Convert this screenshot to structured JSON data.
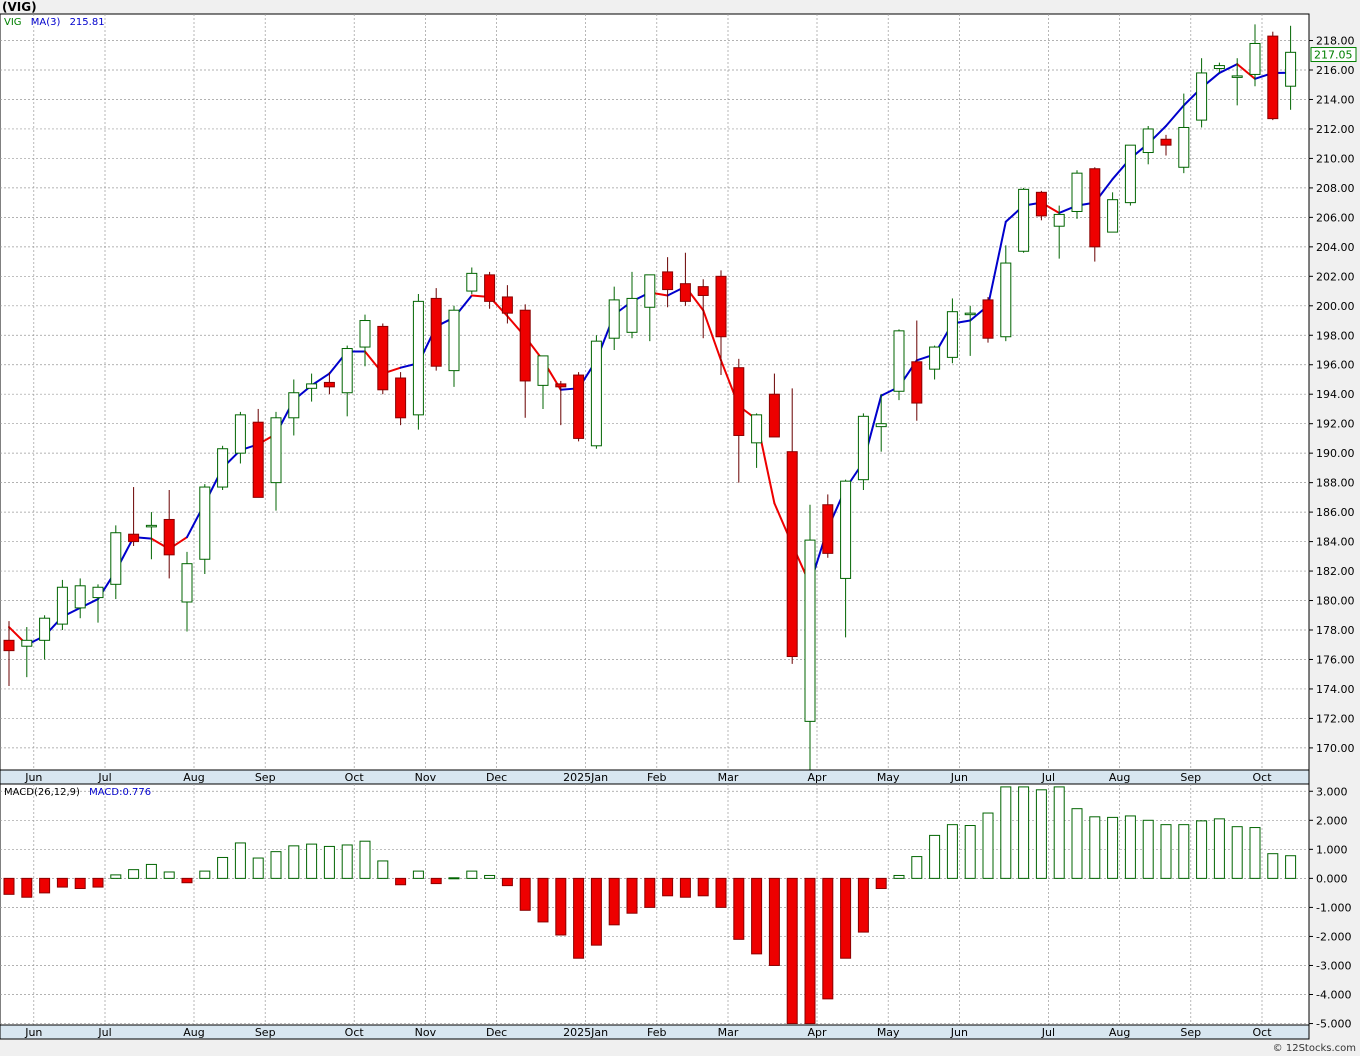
{
  "chart_data": [
    {
      "type": "candlestick",
      "title": "(VIG)",
      "legend": [
        {
          "label": "VIG",
          "color": "#008000"
        },
        {
          "label": "MA(3)",
          "color": "#0000cc"
        },
        {
          "label": "215.81",
          "color": "#0000cc"
        }
      ],
      "last_price_label": "217.05",
      "ylim": [
        168.5,
        219.8
      ],
      "yticks": [
        "170.00",
        "172.00",
        "174.00",
        "176.00",
        "178.00",
        "180.00",
        "182.00",
        "184.00",
        "186.00",
        "188.00",
        "190.00",
        "192.00",
        "194.00",
        "196.00",
        "198.00",
        "200.00",
        "202.00",
        "204.00",
        "206.00",
        "208.00",
        "210.00",
        "212.00",
        "214.00",
        "216.00",
        "218.00"
      ],
      "ytick_values": [
        170,
        172,
        174,
        176,
        178,
        180,
        182,
        184,
        186,
        188,
        190,
        192,
        194,
        196,
        198,
        200,
        202,
        204,
        206,
        208,
        210,
        212,
        214,
        216,
        218
      ],
      "x_month_labels": [
        {
          "label": "Jun",
          "at_bar": 1
        },
        {
          "label": "Jul",
          "at_bar": 5
        },
        {
          "label": "Aug",
          "at_bar": 10
        },
        {
          "label": "Sep",
          "at_bar": 14
        },
        {
          "label": "Oct",
          "at_bar": 19
        },
        {
          "label": "Nov",
          "at_bar": 23
        },
        {
          "label": "Dec",
          "at_bar": 27
        },
        {
          "label": "2025Jan",
          "at_bar": 32
        },
        {
          "label": "Feb",
          "at_bar": 36
        },
        {
          "label": "Mar",
          "at_bar": 40
        },
        {
          "label": "Apr",
          "at_bar": 45
        },
        {
          "label": "May",
          "at_bar": 49
        },
        {
          "label": "Jun",
          "at_bar": 53
        },
        {
          "label": "Jul",
          "at_bar": 58
        },
        {
          "label": "Aug",
          "at_bar": 62
        },
        {
          "label": "Sep",
          "at_bar": 66
        },
        {
          "label": "Oct",
          "at_bar": 70
        }
      ],
      "ohlc": [
        [
          177.3,
          178.6,
          174.2,
          176.6
        ],
        [
          176.9,
          178.2,
          174.8,
          177.3
        ],
        [
          177.3,
          179.0,
          176.0,
          178.8
        ],
        [
          178.4,
          181.4,
          178.0,
          180.9
        ],
        [
          179.5,
          181.5,
          178.8,
          181.0
        ],
        [
          180.2,
          181.1,
          178.5,
          180.9
        ],
        [
          181.1,
          185.1,
          180.1,
          184.6
        ],
        [
          184.5,
          187.7,
          183.7,
          184.0
        ],
        [
          185.0,
          186.0,
          182.8,
          185.1
        ],
        [
          185.5,
          187.5,
          181.5,
          183.1
        ],
        [
          179.9,
          183.3,
          177.9,
          182.5
        ],
        [
          182.8,
          187.9,
          181.8,
          187.7
        ],
        [
          187.7,
          190.5,
          187.5,
          190.3
        ],
        [
          190.0,
          192.8,
          189.3,
          192.6
        ],
        [
          192.1,
          193.0,
          187.0,
          187.0
        ],
        [
          188.0,
          192.8,
          186.1,
          192.4
        ],
        [
          192.4,
          195.0,
          191.2,
          194.1
        ],
        [
          194.4,
          195.4,
          193.5,
          194.7
        ],
        [
          194.8,
          195.5,
          194.0,
          194.5
        ],
        [
          194.1,
          197.3,
          192.5,
          197.1
        ],
        [
          197.2,
          199.4,
          195.9,
          199.0
        ],
        [
          198.6,
          198.8,
          194.0,
          194.3
        ],
        [
          195.1,
          195.5,
          191.9,
          192.4
        ],
        [
          192.6,
          200.8,
          191.6,
          200.3
        ],
        [
          200.5,
          201.2,
          195.6,
          195.9
        ],
        [
          195.6,
          200.0,
          194.5,
          199.7
        ],
        [
          201.0,
          202.6,
          200.8,
          202.2
        ],
        [
          202.1,
          202.3,
          199.8,
          200.3
        ],
        [
          200.6,
          201.4,
          198.8,
          199.5
        ],
        [
          199.7,
          200.1,
          192.4,
          194.9
        ],
        [
          194.6,
          196.1,
          193.0,
          196.6
        ],
        [
          194.7,
          194.9,
          191.9,
          194.5
        ],
        [
          195.3,
          195.5,
          190.8,
          191.0
        ],
        [
          190.5,
          198.0,
          190.3,
          197.6
        ],
        [
          197.8,
          201.3,
          197.0,
          200.4
        ],
        [
          198.2,
          202.3,
          197.8,
          200.5
        ],
        [
          199.9,
          202.0,
          197.6,
          202.1
        ],
        [
          202.3,
          203.3,
          199.9,
          201.1
        ],
        [
          201.5,
          203.6,
          200.0,
          200.3
        ],
        [
          201.3,
          201.8,
          197.8,
          200.7
        ],
        [
          202.0,
          202.4,
          195.3,
          197.9
        ],
        [
          195.8,
          196.4,
          188.0,
          191.2
        ],
        [
          190.7,
          192.7,
          189.0,
          192.6
        ],
        [
          194.0,
          195.4,
          191.3,
          191.1
        ],
        [
          190.1,
          194.4,
          175.7,
          176.2
        ],
        [
          171.8,
          186.5,
          168.5,
          184.1
        ],
        [
          186.5,
          187.2,
          182.9,
          183.2
        ],
        [
          181.5,
          188.2,
          177.5,
          188.1
        ],
        [
          188.2,
          192.7,
          187.5,
          192.5
        ],
        [
          191.8,
          194.0,
          190.1,
          192.0
        ],
        [
          194.2,
          198.4,
          193.6,
          198.3
        ],
        [
          196.2,
          199.0,
          192.2,
          193.4
        ],
        [
          195.7,
          197.3,
          195.0,
          197.2
        ],
        [
          196.5,
          200.5,
          196.1,
          199.6
        ],
        [
          199.5,
          200.0,
          196.6,
          199.5
        ],
        [
          200.4,
          200.6,
          197.5,
          197.8
        ],
        [
          197.9,
          204.1,
          197.6,
          202.9
        ],
        [
          203.7,
          208.0,
          203.6,
          207.9
        ],
        [
          207.7,
          207.8,
          205.8,
          206.1
        ],
        [
          205.4,
          206.8,
          203.2,
          206.2
        ],
        [
          206.4,
          209.2,
          205.9,
          209.0
        ],
        [
          209.3,
          209.4,
          203.0,
          204.0
        ],
        [
          205.0,
          207.7,
          205.0,
          207.2
        ],
        [
          207.0,
          210.9,
          206.8,
          210.9
        ],
        [
          210.4,
          212.2,
          209.6,
          212.0
        ],
        [
          211.3,
          211.6,
          210.2,
          210.9
        ],
        [
          209.4,
          214.4,
          209.0,
          212.1
        ],
        [
          212.6,
          216.8,
          212.1,
          215.8
        ],
        [
          216.1,
          216.5,
          215.8,
          216.3
        ],
        [
          215.6,
          216.8,
          213.6,
          215.6
        ],
        [
          215.7,
          219.1,
          214.9,
          217.8
        ],
        [
          218.3,
          218.6,
          212.6,
          212.7
        ],
        [
          214.9,
          219.0,
          213.3,
          217.2
        ]
      ],
      "ma3": [
        178.2,
        177.0,
        177.6,
        178.9,
        179.5,
        180.1,
        182.0,
        184.3,
        184.2,
        183.5,
        184.3,
        186.6,
        189.0,
        190.2,
        190.6,
        191.3,
        193.6,
        194.6,
        195.4,
        196.9,
        196.9,
        195.4,
        195.8,
        196.1,
        198.6,
        199.2,
        200.7,
        200.6,
        199.3,
        197.9,
        196.3,
        194.3,
        194.4,
        196.3,
        199.4,
        200.3,
        200.9,
        200.7,
        201.3,
        199.7,
        196.3,
        193.2,
        192.3,
        186.6,
        183.8,
        181.1,
        184.9,
        187.6,
        189.4,
        193.9,
        194.5,
        196.3,
        196.7,
        198.8,
        199.0,
        200.0,
        205.7,
        206.8,
        207.0,
        206.3,
        206.8,
        207.0,
        208.6,
        210.0,
        211.0,
        212.2,
        213.6,
        214.8,
        215.8,
        216.4,
        215.4,
        215.8,
        215.81
      ],
      "ma3_colors": [
        "#ee0000",
        "#0000cc",
        "#0000cc",
        "#0000cc",
        "#0000cc",
        "#0000cc",
        "#0000cc",
        "#0000cc",
        "#ee0000",
        "#ee0000",
        "#0000cc",
        "#0000cc",
        "#0000cc",
        "#0000cc",
        "#ee0000",
        "#0000cc",
        "#0000cc",
        "#0000cc",
        "#0000cc",
        "#0000cc",
        "#ee0000",
        "#ee0000",
        "#0000cc",
        "#0000cc",
        "#0000cc",
        "#0000cc",
        "#ee0000",
        "#ee0000",
        "#ee0000",
        "#ee0000",
        "#ee0000",
        "#0000cc",
        "#0000cc",
        "#0000cc",
        "#0000cc",
        "#0000cc",
        "#ee0000",
        "#0000cc",
        "#ee0000",
        "#ee0000",
        "#ee0000",
        "#ee0000",
        "#ee0000",
        "#ee0000",
        "#ee0000",
        "#0000cc",
        "#0000cc",
        "#0000cc",
        "#0000cc",
        "#0000cc",
        "#0000cc",
        "#0000cc",
        "#0000cc",
        "#0000cc",
        "#0000cc",
        "#0000cc",
        "#0000cc",
        "#0000cc",
        "#ee0000",
        "#0000cc",
        "#0000cc",
        "#0000cc",
        "#0000cc",
        "#0000cc",
        "#0000cc",
        "#0000cc",
        "#0000cc",
        "#0000cc",
        "#0000cc",
        "#ee0000",
        "#0000cc",
        "#0000cc"
      ]
    },
    {
      "type": "bar",
      "legend": [
        {
          "label": "MACD(26,12,9)",
          "color": "#000000"
        },
        {
          "label": "MACD:0.776",
          "color": "#0000cc"
        }
      ],
      "ylim": [
        -5.05,
        3.25
      ],
      "yticks": [
        "3.000",
        "2.000",
        "1.000",
        "0.000",
        "-1.000",
        "-2.000",
        "-3.000",
        "-4.000",
        "-5.000"
      ],
      "ytick_values": [
        3,
        2,
        1,
        0,
        -1,
        -2,
        -3,
        -4,
        -5
      ],
      "x_month_labels": [
        {
          "label": "Jun",
          "at_bar": 1
        },
        {
          "label": "Jul",
          "at_bar": 5
        },
        {
          "label": "Aug",
          "at_bar": 10
        },
        {
          "label": "Sep",
          "at_bar": 14
        },
        {
          "label": "Oct",
          "at_bar": 19
        },
        {
          "label": "Nov",
          "at_bar": 23
        },
        {
          "label": "Dec",
          "at_bar": 27
        },
        {
          "label": "2025Jan",
          "at_bar": 32
        },
        {
          "label": "Feb",
          "at_bar": 36
        },
        {
          "label": "Mar",
          "at_bar": 40
        },
        {
          "label": "Apr",
          "at_bar": 45
        },
        {
          "label": "May",
          "at_bar": 49
        },
        {
          "label": "Jun",
          "at_bar": 53
        },
        {
          "label": "Jul",
          "at_bar": 58
        },
        {
          "label": "Aug",
          "at_bar": 62
        },
        {
          "label": "Sep",
          "at_bar": 66
        },
        {
          "label": "Oct",
          "at_bar": 70
        }
      ],
      "values": [
        -0.55,
        -0.65,
        -0.5,
        -0.3,
        -0.35,
        -0.3,
        0.12,
        0.3,
        0.48,
        0.22,
        -0.15,
        0.25,
        0.72,
        1.22,
        0.7,
        0.92,
        1.12,
        1.18,
        1.1,
        1.15,
        1.28,
        0.6,
        -0.22,
        0.25,
        -0.18,
        0.02,
        0.25,
        0.1,
        -0.25,
        -1.1,
        -1.5,
        -1.95,
        -2.75,
        -2.3,
        -1.6,
        -1.2,
        -1.0,
        -0.6,
        -0.65,
        -0.6,
        -1.0,
        -2.1,
        -2.6,
        -3.0,
        -5.0,
        -5.0,
        -4.15,
        -2.75,
        -1.85,
        -0.35,
        0.1,
        0.75,
        1.48,
        1.85,
        1.82,
        2.25,
        3.15,
        3.15,
        3.05,
        3.15,
        2.4,
        2.12,
        2.1,
        2.15,
        2.0,
        1.85,
        1.85,
        1.98,
        2.05,
        1.78,
        1.75,
        0.85,
        0.78
      ]
    }
  ],
  "credit": "© 12Stocks.com"
}
